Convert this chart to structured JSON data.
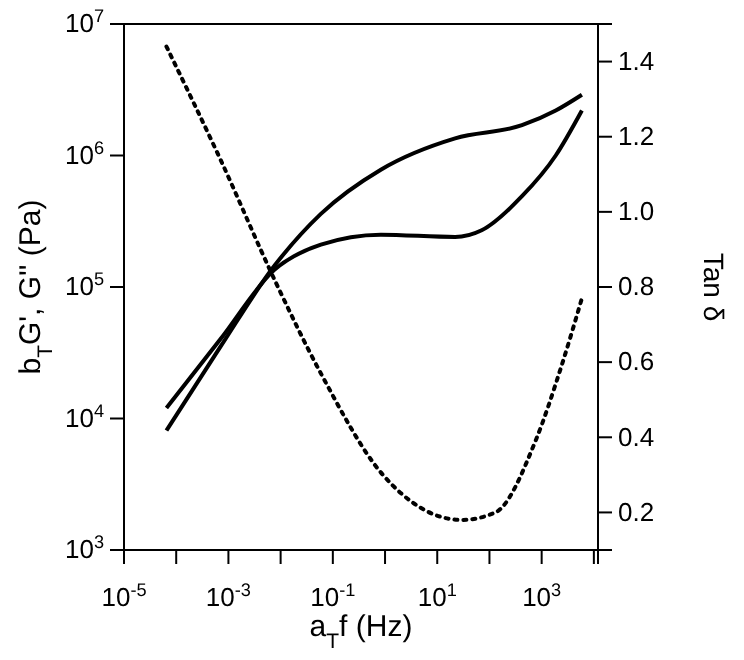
{
  "chart_data": {
    "type": "line",
    "xlabel": "a$_{T}$f (Hz)",
    "ylabel": "b$_{T}$G', G'' (Pa)",
    "y2label": "Tan δ",
    "log": "xy",
    "grid": false,
    "marker": "none",
    "xlim": [
      1e-05,
      12000
    ],
    "xticks": [
      {
        "value": 1e-05,
        "label": "10$^{-5}$"
      },
      {
        "value": 0.0001,
        "label": null
      },
      {
        "value": 0.001,
        "label": "10$^{-3}$"
      },
      {
        "value": 0.01,
        "label": null
      },
      {
        "value": 0.1,
        "label": "10$^{-1}$"
      },
      {
        "value": 1,
        "label": null
      },
      {
        "value": 10,
        "label": "10$^{1}$"
      },
      {
        "value": 100,
        "label": null
      },
      {
        "value": 1000,
        "label": "10$^{3}$"
      },
      {
        "value": 10000,
        "label": null
      }
    ],
    "ylim": [
      1000,
      10000000
    ],
    "yticks": [
      {
        "value": 1000,
        "label": "10$^{3}$"
      },
      {
        "value": 10000,
        "label": "10$^{4}$"
      },
      {
        "value": 100000,
        "label": "10$^{5}$"
      },
      {
        "value": 1000000,
        "label": "10$^{6}$"
      },
      {
        "value": 10000000,
        "label": "10$^{7}$"
      }
    ],
    "y2lim": [
      0.1,
      1.5
    ],
    "y2ticks": [
      0.2,
      0.4,
      0.6,
      0.8,
      {
        "value": 1,
        "label": "1.0"
      },
      1.2,
      1.4
    ],
    "series": [
      {
        "color": "#000000",
        "line_style": "solid",
        "x": [
          6.5e-05,
          0.0007,
          0.0076,
          0.059,
          0.83,
          22,
          71,
          420,
          1860,
          5900
        ],
        "values": [
          12000,
          40000,
          135000,
          210000,
          250000,
          240000,
          270000,
          490000,
          1000000,
          2200000
        ]
      },
      {
        "color": "#000000",
        "line_style": "solid",
        "x": [
          6.5e-05,
          0.0007,
          0.0076,
          0.059,
          0.83,
          22,
          420,
          1860,
          5900
        ],
        "values": [
          8100,
          35000,
          145000,
          360000,
          780000,
          1350000,
          1700000,
          2200000,
          2900000
        ]
      },
      {
        "color": "#000000",
        "line_style": "dotted",
        "axis": "y2",
        "x": [
          6.5e-05,
          0.0007,
          0.0076,
          0.059,
          0.91,
          29,
          130,
          760,
          2400,
          5900
        ],
        "values": [
          1.44,
          1.14,
          0.82,
          0.57,
          0.3,
          0.18,
          0.2,
          0.39,
          0.59,
          0.77
        ]
      }
    ]
  }
}
